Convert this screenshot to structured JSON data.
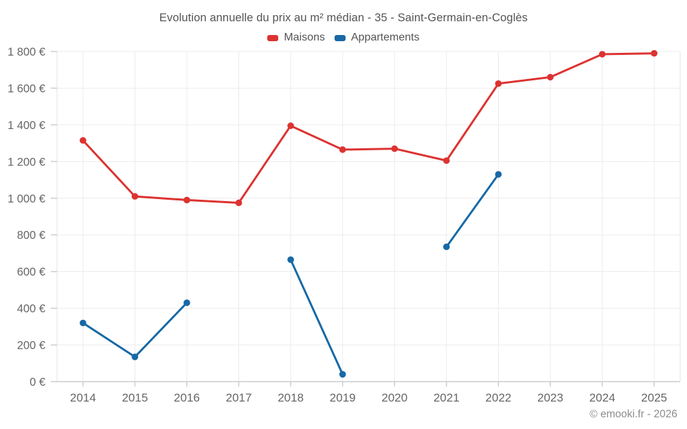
{
  "page": {
    "title": "Evolution annuelle du prix au m² médian - 35 - Saint-Germain-en-Coglès",
    "footer_credit": "© emooki.fr - 2026"
  },
  "chart_data": {
    "type": "line",
    "title": "Evolution annuelle du prix au m² médian - 35 - Saint-Germain-en-Coglès",
    "categories": [
      "2014",
      "2015",
      "2016",
      "2017",
      "2018",
      "2019",
      "2020",
      "2021",
      "2022",
      "2023",
      "2024",
      "2025"
    ],
    "series": [
      {
        "name": "Maisons",
        "color": "#dc3331",
        "values": [
          1315,
          1010,
          990,
          975,
          1395,
          1265,
          1270,
          1205,
          1625,
          1660,
          1785,
          1790
        ]
      },
      {
        "name": "Appartements",
        "color": "#1769a5",
        "values": [
          320,
          135,
          430,
          null,
          665,
          40,
          null,
          735,
          1130,
          null,
          null,
          null
        ]
      }
    ],
    "xlabel": "",
    "ylabel": "",
    "ylim": [
      0,
      1800
    ],
    "ytick_step": 200,
    "ytick_suffix": " €",
    "grid": true,
    "legend_position": "top",
    "marker": "circle"
  },
  "style_colors": {
    "grid_line": "#ececec",
    "edge_line": "#e3e3e3",
    "axis_line": "#cccccc",
    "tick_mark": "#cccccc",
    "tick_label": "#666666",
    "title_text": "#545454",
    "footer_text": "#8c8c8c",
    "background": "#ffffff"
  }
}
